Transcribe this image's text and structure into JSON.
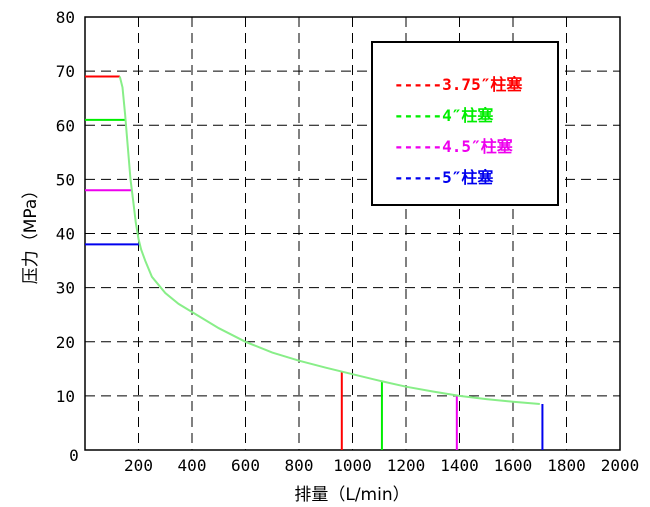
{
  "chart_data": {
    "type": "line",
    "title": "",
    "xlabel": "排量（L/min）",
    "ylabel": "压力（MPa）",
    "xlim": [
      0,
      2000
    ],
    "ylim": [
      0,
      80
    ],
    "x_ticks": [
      200,
      400,
      600,
      800,
      1000,
      1200,
      1400,
      1600,
      1800,
      2000
    ],
    "y_ticks": [
      0,
      10,
      20,
      30,
      40,
      50,
      60,
      70,
      80
    ],
    "grid": "dashed",
    "legend_position": "top-right",
    "curve": {
      "color": "#88ee88",
      "x": [
        130,
        140,
        150,
        160,
        170,
        180,
        190,
        200,
        210,
        225,
        250,
        300,
        350,
        400,
        500,
        600,
        700,
        800,
        900,
        1000,
        1100,
        1200,
        1300,
        1400,
        1500,
        1600,
        1700
      ],
      "y": [
        69,
        67,
        62,
        56,
        50,
        46,
        42,
        39,
        37,
        35,
        32,
        29,
        27,
        25.5,
        22.5,
        20,
        18,
        16.5,
        15.2,
        14,
        12.8,
        11.7,
        10.8,
        10,
        9.4,
        8.9,
        8.5
      ]
    },
    "series": [
      {
        "name": "3.75″柱塞",
        "color": "#ff0000",
        "pressure_limit": 69,
        "max_displacement": 960
      },
      {
        "name": "4″柱塞",
        "color": "#00ee00",
        "pressure_limit": 61,
        "max_displacement": 1110
      },
      {
        "name": "4.5″柱塞",
        "color": "#ee00ee",
        "pressure_limit": 48,
        "max_displacement": 1390
      },
      {
        "name": "5″柱塞",
        "color": "#0000ee",
        "pressure_limit": 38,
        "max_displacement": 1710
      }
    ],
    "legend_prefix": "-----",
    "zero_label": "0"
  }
}
